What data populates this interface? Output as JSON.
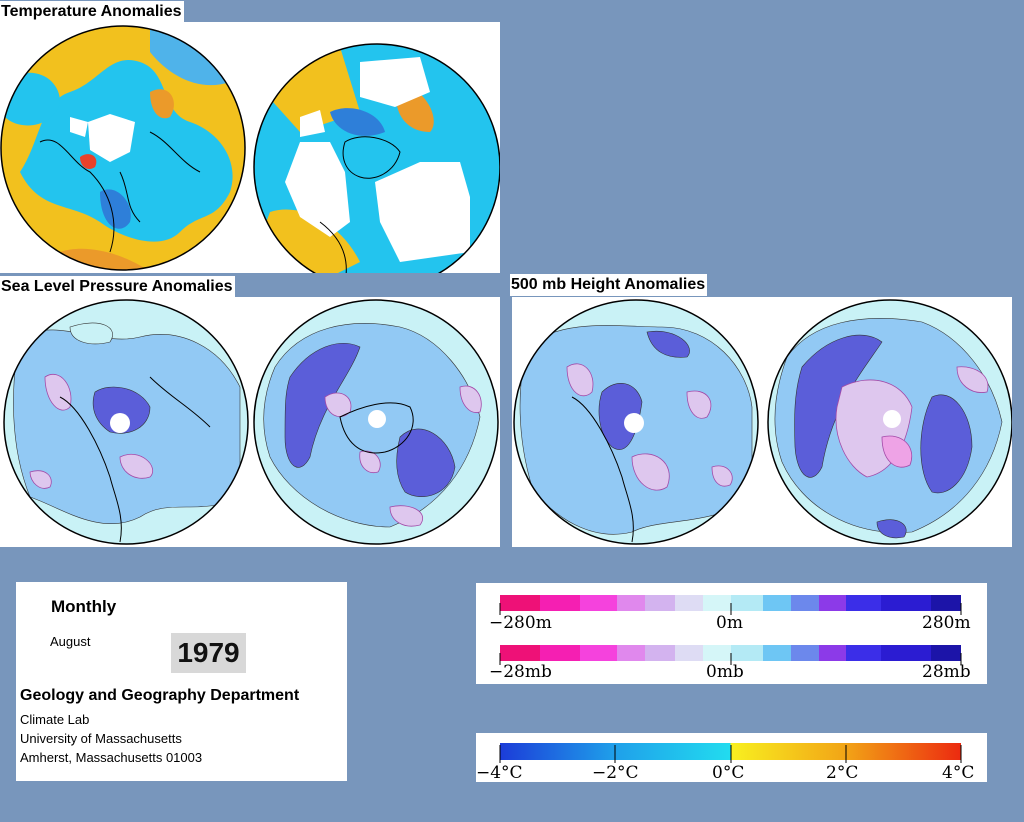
{
  "panels": {
    "temperature": {
      "title": "Temperature Anomalies"
    },
    "slp": {
      "title": "Sea Level Pressure Anomalies"
    },
    "height500": {
      "title": "500 mb Height Anomalies"
    }
  },
  "info": {
    "period": "Monthly",
    "month": "August",
    "year": "1979",
    "department": "Geology and Geography Department",
    "address": [
      "Climate Lab",
      "University of Massachusetts",
      "Amherst, Massachusetts 01003"
    ]
  },
  "legends": {
    "height": {
      "min": "−280m",
      "mid": "0m",
      "max": "280m"
    },
    "pressure": {
      "min": "−28mb",
      "mid": "0mb",
      "max": "28mb"
    },
    "temperature": {
      "ticks": [
        "−4°C",
        "−2°C",
        "0°C",
        "2°C",
        "4°C"
      ]
    }
  },
  "colors": {
    "background": "#7896bc",
    "temp_warm": "#f2c11e",
    "temp_cool": "#23c4ee",
    "pressure_light": "#c9f2f6",
    "pressure_mid": "#92c9f4",
    "pressure_dark": "#5b5ed9"
  }
}
